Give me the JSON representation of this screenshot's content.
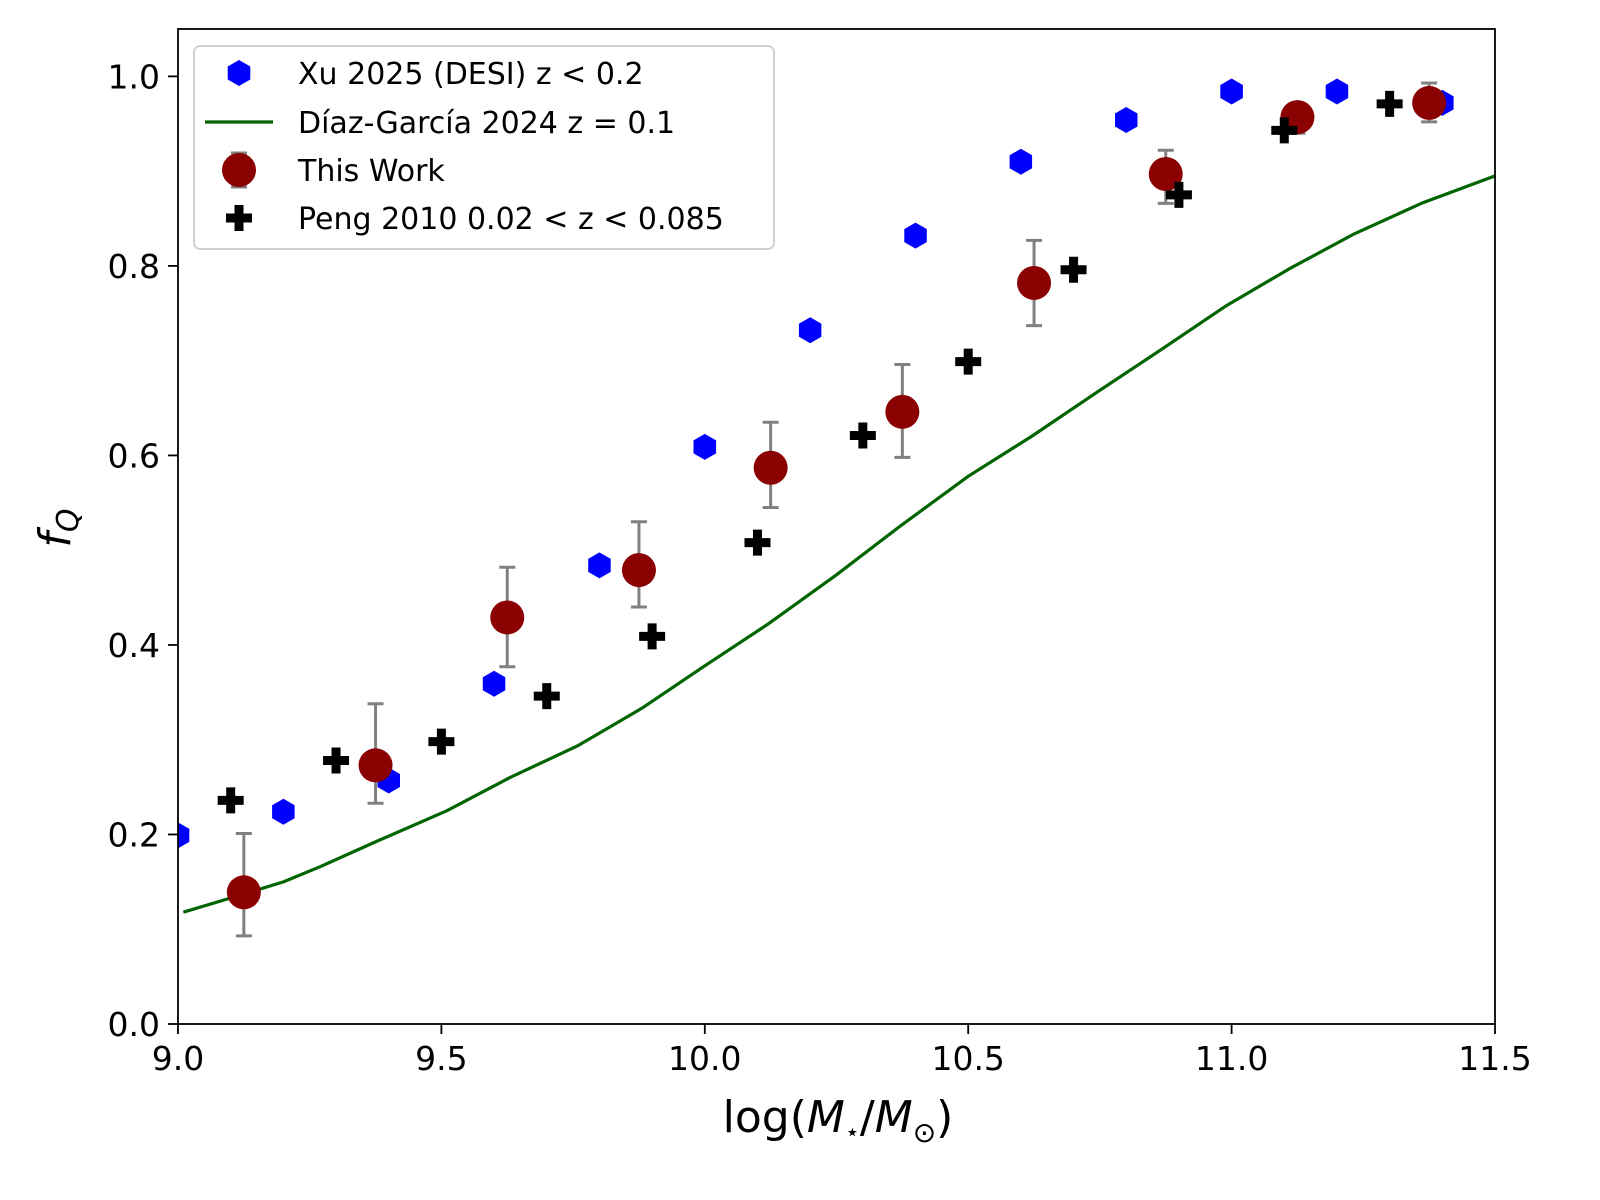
{
  "chart_data": {
    "type": "scatter",
    "title": "",
    "xlabel": "log(M⋆/M⊙)",
    "xlabel_parts": {
      "prefix": "log(",
      "m1": "M",
      "sub1": "⋆",
      "slash": "/",
      "m2": "M",
      "sub2": "⊙",
      "suffix": ")"
    },
    "ylabel": "f_Q",
    "ylabel_parts": {
      "main": "f",
      "sub": "Q"
    },
    "xlim": [
      9.0,
      11.5
    ],
    "ylim": [
      0.0,
      1.05
    ],
    "xticks": [
      9.0,
      9.5,
      10.0,
      10.5,
      11.0,
      11.5
    ],
    "xtick_labels": [
      "9.0",
      "9.5",
      "10.0",
      "10.5",
      "11.0",
      "11.5"
    ],
    "yticks": [
      0.0,
      0.2,
      0.4,
      0.6,
      0.8,
      1.0
    ],
    "ytick_labels": [
      "0.0",
      "0.2",
      "0.4",
      "0.6",
      "0.8",
      "1.0"
    ],
    "grid": false,
    "legend_position": "upper-left",
    "series": [
      {
        "name": "Xu 2025 (DESI) z < 0.2",
        "kind": "hexagon",
        "color": "#0000ff",
        "x": [
          9.0,
          9.2,
          9.4,
          9.6,
          9.8,
          10.0,
          10.2,
          10.4,
          10.6,
          10.8,
          11.0,
          11.2,
          11.4
        ],
        "y": [
          0.199,
          0.224,
          0.257,
          0.359,
          0.484,
          0.609,
          0.732,
          0.832,
          0.91,
          0.954,
          0.984,
          0.984,
          0.972
        ]
      },
      {
        "name": "Díaz-García 2024 z = 0.1",
        "kind": "line",
        "color": "#006400",
        "x": [
          9.01,
          9.1,
          9.2,
          9.27,
          9.37,
          9.51,
          9.63,
          9.76,
          9.88,
          10.0,
          10.12,
          10.25,
          10.37,
          10.5,
          10.62,
          10.74,
          10.87,
          10.99,
          11.11,
          11.23,
          11.36,
          11.5
        ],
        "y": [
          0.118,
          0.133,
          0.15,
          0.166,
          0.191,
          0.225,
          0.26,
          0.294,
          0.333,
          0.378,
          0.422,
          0.474,
          0.525,
          0.578,
          0.62,
          0.665,
          0.713,
          0.758,
          0.797,
          0.833,
          0.866,
          0.895
        ]
      },
      {
        "name": "This Work",
        "kind": "circle",
        "color": "#8b0000",
        "error_color": "#808080",
        "x": [
          9.125,
          9.375,
          9.625,
          9.875,
          10.125,
          10.375,
          10.625,
          10.875,
          11.125,
          11.375
        ],
        "y": [
          0.139,
          0.273,
          0.429,
          0.479,
          0.587,
          0.646,
          0.782,
          0.897,
          0.957,
          0.972
        ],
        "yerr_low": [
          0.093,
          0.233,
          0.377,
          0.44,
          0.545,
          0.598,
          0.737,
          0.866,
          0.94,
          0.952
        ],
        "yerr_high": [
          0.201,
          0.338,
          0.482,
          0.53,
          0.635,
          0.696,
          0.827,
          0.922,
          0.96,
          0.993
        ]
      },
      {
        "name": "Peng 2010 0.02 < z < 0.085",
        "kind": "plus",
        "color": "#000000",
        "x": [
          9.1,
          9.3,
          9.5,
          9.7,
          9.9,
          10.1,
          10.3,
          10.5,
          10.7,
          10.9,
          11.1,
          11.3
        ],
        "y": [
          0.236,
          0.278,
          0.298,
          0.346,
          0.409,
          0.508,
          0.621,
          0.699,
          0.796,
          0.875,
          0.943,
          0.971
        ]
      }
    ]
  }
}
